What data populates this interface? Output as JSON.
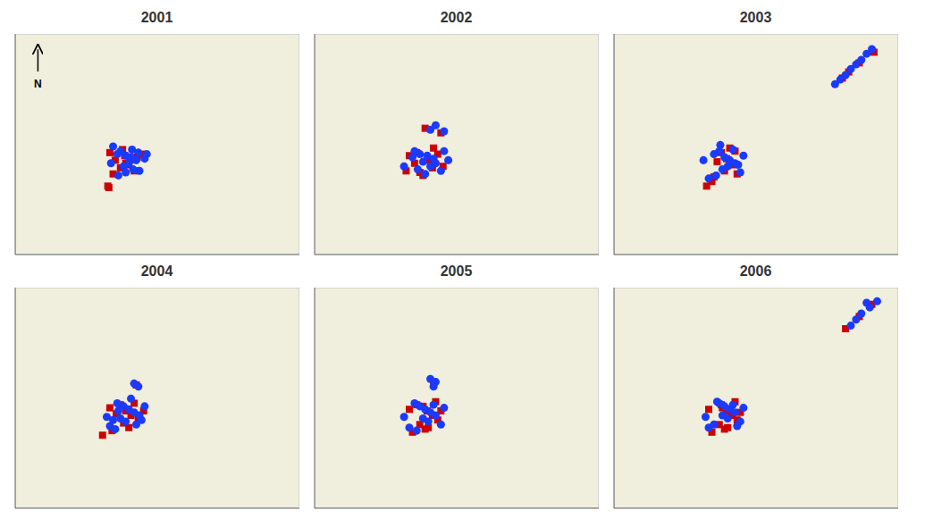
{
  "chart_data": [
    {
      "type": "scatter",
      "title": "2001",
      "xlim": [
        4.5,
        31.5
      ],
      "ylim": [
        57.0,
        71.5
      ],
      "tick_labels": false,
      "grid": false,
      "annotations": [
        "N"
      ],
      "series": [
        {
          "color": "#1a3aff",
          "marker": "circle",
          "values": [
            [
              14.5,
              63.8
            ],
            [
              13.8,
              64.1
            ],
            [
              14.2,
              63.6
            ],
            [
              15.0,
              63.5
            ],
            [
              15.5,
              63.4
            ],
            [
              16.2,
              63.7
            ],
            [
              16.0,
              63.2
            ],
            [
              15.3,
              63.0
            ],
            [
              14.8,
              62.8
            ],
            [
              15.7,
              62.6
            ],
            [
              16.3,
              62.5
            ],
            [
              15.0,
              62.4
            ],
            [
              14.3,
              62.2
            ],
            [
              13.6,
              63.0
            ],
            [
              16.8,
              63.3
            ],
            [
              17.0,
              63.6
            ],
            [
              15.6,
              63.9
            ]
          ]
        },
        {
          "color": "#cc0000",
          "marker": "square",
          "values": [
            [
              14.7,
              63.9
            ],
            [
              13.5,
              63.7
            ],
            [
              14.9,
              63.5
            ],
            [
              15.4,
              63.2
            ],
            [
              15.0,
              63.0
            ],
            [
              14.5,
              62.7
            ],
            [
              15.8,
              62.5
            ],
            [
              13.8,
              62.3
            ],
            [
              15.2,
              62.9
            ],
            [
              16.1,
              63.4
            ],
            [
              14.0,
              63.2
            ],
            [
              16.5,
              63.6
            ],
            [
              13.3,
              61.5
            ],
            [
              13.4,
              61.4
            ]
          ]
        }
      ]
    },
    {
      "type": "scatter",
      "title": "2002",
      "xlim": [
        4.5,
        31.5
      ],
      "ylim": [
        57.0,
        71.5
      ],
      "tick_labels": false,
      "grid": false,
      "series": [
        {
          "color": "#1a3aff",
          "marker": "circle",
          "values": [
            [
              15.5,
              65.2
            ],
            [
              16.0,
              65.5
            ],
            [
              16.8,
              65.1
            ],
            [
              14.0,
              63.8
            ],
            [
              14.5,
              63.6
            ],
            [
              13.8,
              63.4
            ],
            [
              15.2,
              63.5
            ],
            [
              15.8,
              63.3
            ],
            [
              14.8,
              63.1
            ],
            [
              16.0,
              63.0
            ],
            [
              15.5,
              62.8
            ],
            [
              14.3,
              62.6
            ],
            [
              16.5,
              62.5
            ],
            [
              13.0,
              62.8
            ],
            [
              16.8,
              63.8
            ],
            [
              17.2,
              63.2
            ],
            [
              15.0,
              62.3
            ]
          ]
        },
        {
          "color": "#cc0000",
          "marker": "square",
          "values": [
            [
              15.0,
              65.3
            ],
            [
              16.5,
              65.0
            ],
            [
              14.2,
              63.7
            ],
            [
              15.3,
              63.2
            ],
            [
              14.0,
              63.0
            ],
            [
              15.7,
              62.7
            ],
            [
              14.5,
              62.4
            ],
            [
              16.2,
              63.6
            ],
            [
              15.8,
              64.0
            ],
            [
              13.5,
              63.5
            ],
            [
              16.7,
              62.8
            ],
            [
              14.8,
              62.2
            ],
            [
              13.2,
              62.5
            ]
          ]
        }
      ]
    },
    {
      "type": "scatter",
      "title": "2003",
      "xlim": [
        4.5,
        31.5
      ],
      "ylim": [
        57.0,
        71.5
      ],
      "tick_labels": false,
      "grid": false,
      "series": [
        {
          "color": "#1a3aff",
          "marker": "circle",
          "values": [
            [
              29.0,
              70.5
            ],
            [
              28.5,
              70.2
            ],
            [
              28.0,
              69.8
            ],
            [
              27.5,
              69.5
            ],
            [
              27.0,
              69.2
            ],
            [
              26.5,
              68.8
            ],
            [
              26.0,
              68.5
            ],
            [
              25.5,
              68.2
            ],
            [
              14.5,
              63.8
            ],
            [
              14.0,
              63.6
            ],
            [
              15.0,
              63.4
            ],
            [
              15.5,
              63.2
            ],
            [
              16.0,
              63.0
            ],
            [
              15.3,
              62.8
            ],
            [
              14.8,
              62.6
            ],
            [
              16.5,
              62.4
            ],
            [
              14.2,
              62.2
            ],
            [
              13.5,
              62.0
            ],
            [
              16.8,
              63.5
            ],
            [
              13.0,
              63.2
            ],
            [
              15.8,
              63.9
            ],
            [
              14.6,
              64.2
            ],
            [
              16.3,
              62.9
            ]
          ]
        },
        {
          "color": "#cc0000",
          "marker": "square",
          "values": [
            [
              29.2,
              70.3
            ],
            [
              27.8,
              69.6
            ],
            [
              26.8,
              69.0
            ],
            [
              14.7,
              63.7
            ],
            [
              15.2,
              63.3
            ],
            [
              14.3,
              63.1
            ],
            [
              15.8,
              62.9
            ],
            [
              15.0,
              62.5
            ],
            [
              16.2,
              62.3
            ],
            [
              14.0,
              62.1
            ],
            [
              13.8,
              61.8
            ],
            [
              16.0,
              63.8
            ],
            [
              15.5,
              64.0
            ],
            [
              26.2,
              68.6
            ],
            [
              13.3,
              61.5
            ]
          ]
        }
      ]
    },
    {
      "type": "scatter",
      "title": "2004",
      "xlim": [
        4.5,
        31.5
      ],
      "ylim": [
        57.0,
        71.5
      ],
      "tick_labels": false,
      "grid": false,
      "series": [
        {
          "color": "#1a3aff",
          "marker": "circle",
          "values": [
            [
              15.8,
              65.2
            ],
            [
              16.2,
              65.0
            ],
            [
              14.2,
              63.9
            ],
            [
              14.8,
              63.7
            ],
            [
              15.3,
              63.5
            ],
            [
              15.8,
              63.3
            ],
            [
              16.3,
              63.1
            ],
            [
              14.5,
              62.9
            ],
            [
              15.0,
              62.7
            ],
            [
              16.0,
              62.5
            ],
            [
              13.5,
              62.4
            ],
            [
              14.0,
              62.2
            ],
            [
              16.8,
              63.7
            ],
            [
              13.2,
              63.0
            ],
            [
              15.5,
              64.2
            ],
            [
              14.3,
              63.4
            ],
            [
              13.8,
              62.8
            ],
            [
              16.5,
              62.8
            ]
          ]
        },
        {
          "color": "#cc0000",
          "marker": "square",
          "values": [
            [
              16.0,
              65.1
            ],
            [
              14.5,
              63.8
            ],
            [
              15.0,
              63.4
            ],
            [
              15.5,
              63.1
            ],
            [
              16.2,
              62.9
            ],
            [
              14.8,
              62.6
            ],
            [
              15.3,
              62.3
            ],
            [
              13.7,
              62.1
            ],
            [
              16.7,
              63.4
            ],
            [
              14.1,
              63.2
            ],
            [
              15.8,
              63.9
            ],
            [
              13.5,
              63.6
            ],
            [
              12.8,
              61.8
            ]
          ]
        }
      ]
    },
    {
      "type": "scatter",
      "title": "2005",
      "xlim": [
        4.5,
        31.5
      ],
      "ylim": [
        57.0,
        71.5
      ],
      "tick_labels": false,
      "grid": false,
      "series": [
        {
          "color": "#1a3aff",
          "marker": "circle",
          "values": [
            [
              15.5,
              65.5
            ],
            [
              16.0,
              65.3
            ],
            [
              15.8,
              65.0
            ],
            [
              14.0,
              63.9
            ],
            [
              14.5,
              63.7
            ],
            [
              15.0,
              63.5
            ],
            [
              15.5,
              63.3
            ],
            [
              16.0,
              63.1
            ],
            [
              14.8,
              62.9
            ],
            [
              15.3,
              62.7
            ],
            [
              16.5,
              62.5
            ],
            [
              13.5,
              62.3
            ],
            [
              14.2,
              62.1
            ],
            [
              16.8,
              63.6
            ],
            [
              13.0,
              63.0
            ],
            [
              15.8,
              63.8
            ]
          ]
        },
        {
          "color": "#cc0000",
          "marker": "square",
          "values": [
            [
              15.8,
              65.2
            ],
            [
              14.2,
              63.8
            ],
            [
              15.2,
              63.4
            ],
            [
              15.7,
              63.1
            ],
            [
              16.2,
              62.8
            ],
            [
              14.5,
              62.5
            ],
            [
              15.0,
              62.2
            ],
            [
              13.8,
              62.0
            ],
            [
              16.5,
              63.4
            ],
            [
              14.8,
              63.7
            ],
            [
              16.0,
              64.0
            ],
            [
              13.5,
              63.5
            ],
            [
              15.3,
              62.3
            ]
          ]
        }
      ]
    },
    {
      "type": "scatter",
      "title": "2006",
      "xlim": [
        4.5,
        31.5
      ],
      "ylim": [
        57.0,
        71.5
      ],
      "tick_labels": false,
      "grid": false,
      "series": [
        {
          "color": "#1a3aff",
          "marker": "circle",
          "values": [
            [
              29.5,
              70.6
            ],
            [
              28.8,
              70.2
            ],
            [
              28.0,
              69.8
            ],
            [
              27.5,
              69.4
            ],
            [
              27.0,
              69.0
            ],
            [
              14.5,
              63.9
            ],
            [
              15.0,
              63.7
            ],
            [
              15.5,
              63.5
            ],
            [
              16.0,
              63.3
            ],
            [
              14.8,
              63.1
            ],
            [
              15.3,
              62.9
            ],
            [
              16.5,
              62.7
            ],
            [
              14.0,
              62.5
            ],
            [
              13.5,
              62.3
            ],
            [
              16.8,
              63.6
            ],
            [
              13.2,
              63.0
            ],
            [
              15.8,
              63.8
            ],
            [
              14.3,
              64.0
            ],
            [
              16.2,
              62.4
            ],
            [
              28.5,
              70.5
            ]
          ]
        },
        {
          "color": "#cc0000",
          "marker": "square",
          "values": [
            [
              29.0,
              70.4
            ],
            [
              27.8,
              69.6
            ],
            [
              26.5,
              68.8
            ],
            [
              14.7,
              63.8
            ],
            [
              15.2,
              63.4
            ],
            [
              15.7,
              63.1
            ],
            [
              16.2,
              62.8
            ],
            [
              14.5,
              62.5
            ],
            [
              15.0,
              62.2
            ],
            [
              13.8,
              62.0
            ],
            [
              16.5,
              63.3
            ],
            [
              14.8,
              63.6
            ],
            [
              16.0,
              64.0
            ],
            [
              13.5,
              63.5
            ],
            [
              15.3,
              62.3
            ]
          ]
        }
      ]
    }
  ]
}
